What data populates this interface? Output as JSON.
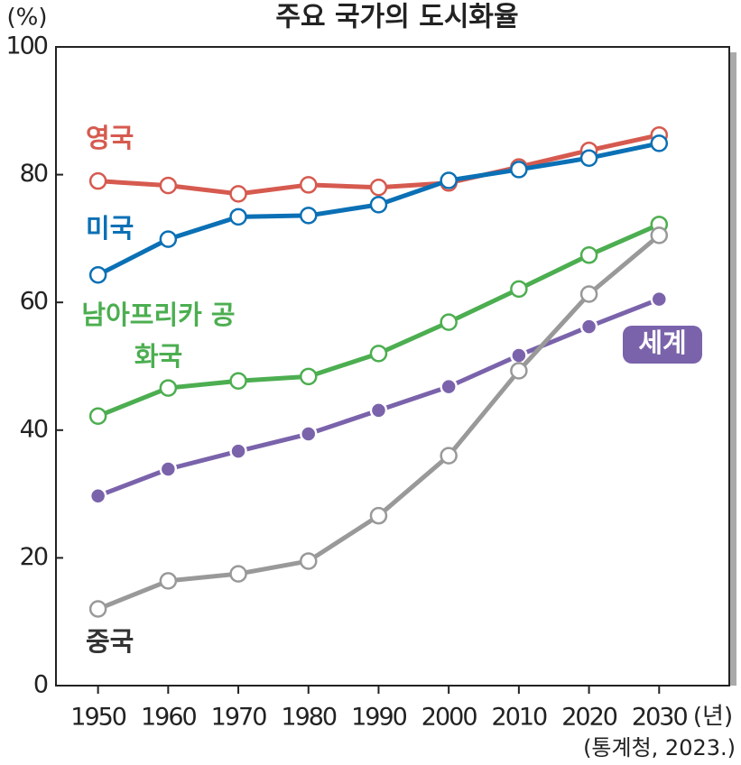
{
  "chart_data": {
    "type": "line",
    "title": "주요 국가의 도시화율",
    "y_label": "(%)",
    "x_label": "(년)",
    "source": "(통계청, 2023.)",
    "x": [
      1950,
      1960,
      1970,
      1980,
      1990,
      2000,
      2010,
      2020,
      2030
    ],
    "xlim": [
      1944,
      2040
    ],
    "xticks": [
      1950,
      1960,
      1970,
      1980,
      1990,
      2000,
      2010,
      2020,
      2030
    ],
    "ylim": [
      0,
      100
    ],
    "yticks": [
      0,
      20,
      40,
      60,
      80,
      100
    ],
    "grid": false,
    "series": [
      {
        "name": "영국",
        "color": "#d65a4f",
        "marker": "open",
        "values": [
          79.0,
          78.3,
          77.0,
          78.4,
          78.0,
          78.7,
          81.2,
          83.8,
          86.2
        ]
      },
      {
        "name": "미국",
        "color": "#0b70b5",
        "marker": "open",
        "values": [
          64.3,
          69.9,
          73.4,
          73.6,
          75.3,
          79.1,
          80.8,
          82.6,
          84.9
        ]
      },
      {
        "name": "남아프리카 공화국",
        "color": "#4cae50",
        "marker": "open",
        "values": [
          42.2,
          46.6,
          47.7,
          48.4,
          52.0,
          56.9,
          62.1,
          67.4,
          72.2
        ]
      },
      {
        "name": "세계",
        "color": "#7a63ab",
        "marker": "filled",
        "values": [
          29.7,
          33.9,
          36.7,
          39.4,
          43.1,
          46.8,
          51.7,
          56.2,
          60.5
        ]
      },
      {
        "name": "중국",
        "color": "#999999",
        "marker": "open",
        "values": [
          12.0,
          16.4,
          17.5,
          19.5,
          26.6,
          36.0,
          49.3,
          61.3,
          70.5
        ]
      }
    ]
  }
}
